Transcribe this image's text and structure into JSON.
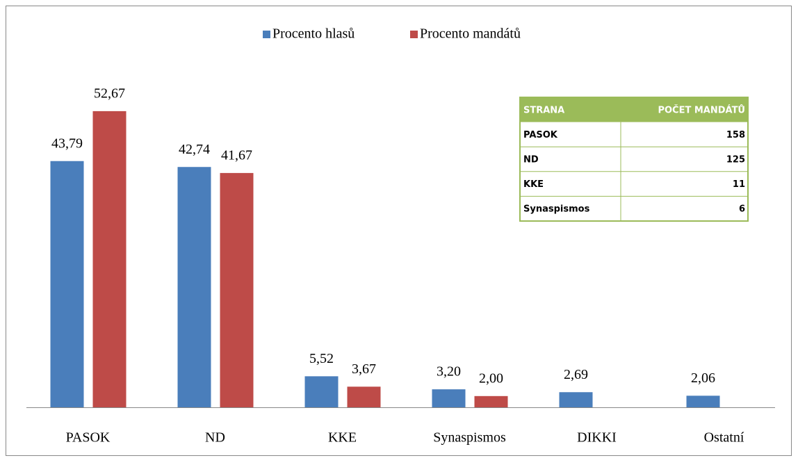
{
  "chart_data": {
    "type": "bar",
    "categories": [
      "PASOK",
      "ND",
      "KKE",
      "Synaspismos",
      "DIKKI",
      "Ostatní"
    ],
    "series": [
      {
        "name": "Procento hlasů",
        "color": "#4a7ebb",
        "values": [
          43.79,
          42.74,
          5.52,
          3.2,
          2.69,
          2.06
        ],
        "value_labels": [
          "43,79",
          "42,74",
          "5,52",
          "3,20",
          "2,69",
          "2,06"
        ]
      },
      {
        "name": "Procento mandátů",
        "color": "#be4b48",
        "values": [
          52.67,
          41.67,
          3.67,
          2.0,
          null,
          null
        ],
        "value_labels": [
          "52,67",
          "41,67",
          "3,67",
          "2,00",
          null,
          null
        ]
      }
    ],
    "legend": "top"
  },
  "table": {
    "header": [
      "STRANA",
      "POČET MANDÁTŮ"
    ],
    "rows": [
      [
        "PASOK",
        "158"
      ],
      [
        "ND",
        "125"
      ],
      [
        "KKE",
        "11"
      ],
      [
        "Synaspismos",
        "6"
      ]
    ]
  }
}
